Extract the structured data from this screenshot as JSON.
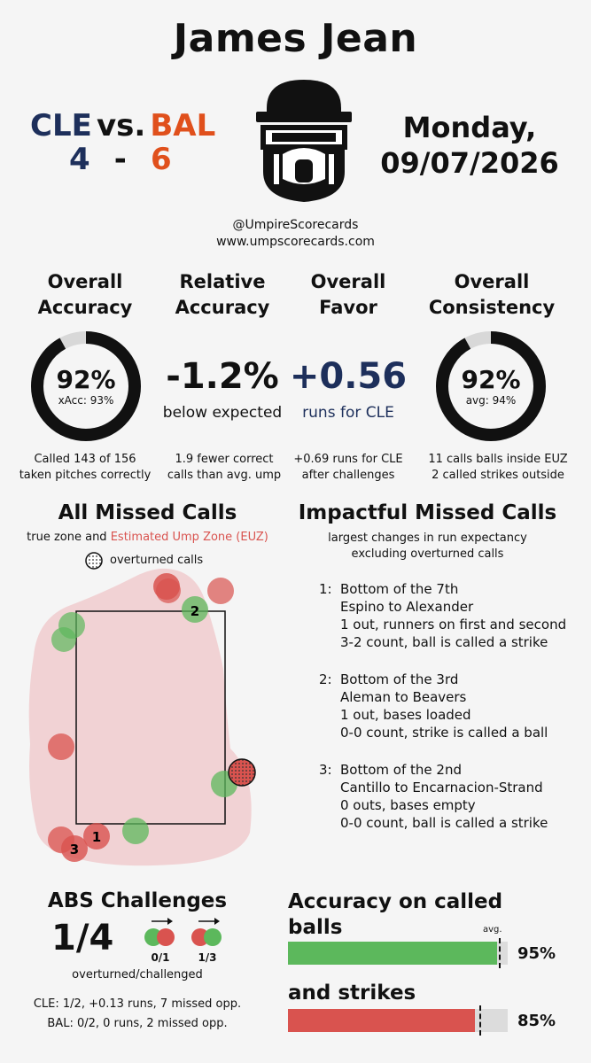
{
  "umpire": {
    "name": "James Jean"
  },
  "game": {
    "away_team": "CLE",
    "vs": "vs.",
    "home_team": "BAL",
    "away_score": "4",
    "dash": "-",
    "home_score": "6",
    "date_line1": "Monday,",
    "date_line2": "09/07/2026"
  },
  "branding": {
    "handle": "@UmpireScorecards",
    "site": "www.umpscorecards.com"
  },
  "colors": {
    "cle": "#1d2f5b",
    "bal": "#e0501c",
    "green": "#5cb85c",
    "red": "#d9534f",
    "zone_fill": "#f1d2d4"
  },
  "stats": {
    "overall_accuracy": {
      "title_l1": "Overall",
      "title_l2": "Accuracy",
      "value": "92%",
      "sub": "xAcc: 93%",
      "fill_fraction": 0.92,
      "caption_l1": "Called 143 of 156",
      "caption_l2": "taken pitches correctly"
    },
    "relative_accuracy": {
      "title_l1": "Relative",
      "title_l2": "Accuracy",
      "value": "-1.2%",
      "sub": "below expected",
      "caption_l1": "1.9 fewer correct",
      "caption_l2": "calls than avg. ump"
    },
    "overall_favor": {
      "title_l1": "Overall",
      "title_l2": "Favor",
      "value": "+0.56",
      "sub": "runs for CLE",
      "caption_l1": "+0.69 runs for CLE",
      "caption_l2": "after challenges"
    },
    "overall_consistency": {
      "title_l1": "Overall",
      "title_l2": "Consistency",
      "value": "92%",
      "sub": "avg: 94%",
      "fill_fraction": 0.92,
      "caption_l1": "11 calls balls inside EUZ",
      "caption_l2": "2 called strikes outside"
    }
  },
  "missed_calls": {
    "title": "All Missed Calls",
    "subtitle_prefix": "true zone and ",
    "subtitle_euz": "Estimated Ump Zone (EUZ)",
    "legend_overturned": "overturned calls",
    "pitch_labels": [
      "1",
      "2",
      "3"
    ]
  },
  "impactful": {
    "title": "Impactful Missed Calls",
    "subtitle_l1": "largest changes in run expectancy",
    "subtitle_l2": "excluding overturned calls",
    "items": [
      {
        "num": "1:",
        "l1": "Bottom of the 7th",
        "l2": "Espino to Alexander",
        "l3": "1 out, runners on first and second",
        "l4": "3-2 count, ball is called a strike"
      },
      {
        "num": "2:",
        "l1": "Bottom of the 3rd",
        "l2": "Aleman to Beavers",
        "l3": "1 out, bases loaded",
        "l4": "0-0 count, strike is called a ball"
      },
      {
        "num": "3:",
        "l1": "Bottom of the 2nd",
        "l2": "Cantillo to Encarnacion-Strand",
        "l3": "0 outs, bases empty",
        "l4": "0-0 count, ball is called a strike"
      }
    ]
  },
  "abs": {
    "title": "ABS Challenges",
    "ratio": "1/4",
    "ratio_label": "overturned/challenged",
    "strike_to_ball": "0/1",
    "ball_to_strike": "1/3",
    "cle_line": "CLE: 1/2, +0.13 runs, 7 missed opp.",
    "bal_line": "BAL: 0/2, 0 runs, 2 missed opp."
  },
  "called_accuracy": {
    "title_l1": "Accuracy on called",
    "title_l2": "balls",
    "avg_label": "avg.",
    "balls_pct": "95%",
    "balls_fraction": 0.95,
    "balls_avg_fraction": 0.96,
    "strikes_title": "and strikes",
    "strikes_pct": "85%",
    "strikes_fraction": 0.85,
    "strikes_avg_fraction": 0.87
  }
}
